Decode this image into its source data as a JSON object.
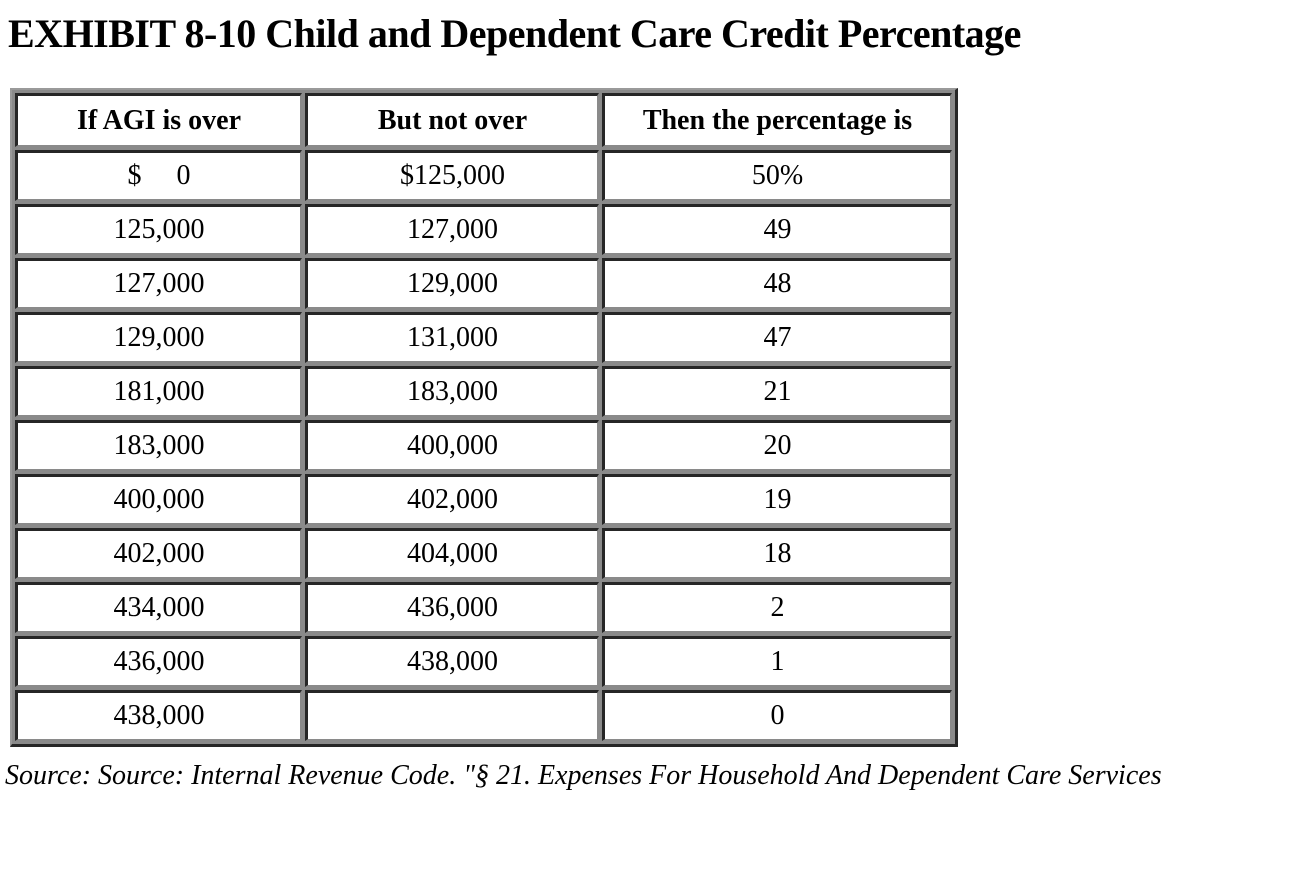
{
  "page": {
    "title": "EXHIBIT 8-10 Child and Dependent Care Credit Percentage",
    "source_note": "Source: Source: Internal Revenue Code. \"§ 21. Expenses For Household And Dependent Care Services"
  },
  "table": {
    "headers": [
      "If AGI is over",
      "But not over",
      "Then the percentage is"
    ],
    "rows": [
      [
        "$     0",
        "$125,000",
        "50%"
      ],
      [
        "125,000",
        "127,000",
        "49"
      ],
      [
        "127,000",
        "129,000",
        "48"
      ],
      [
        "129,000",
        "131,000",
        "47"
      ],
      [
        "181,000",
        "183,000",
        "21"
      ],
      [
        "183,000",
        "400,000",
        "20"
      ],
      [
        "400,000",
        "402,000",
        "19"
      ],
      [
        "402,000",
        "404,000",
        "18"
      ],
      [
        "434,000",
        "436,000",
        "2"
      ],
      [
        "436,000",
        "438,000",
        "1"
      ],
      [
        "438,000",
        "",
        "0"
      ]
    ]
  },
  "colors": {
    "cell_background": "#ffffff",
    "border_gray": "#8a8a8a",
    "border_dark": "#262626",
    "text": "#000000"
  }
}
